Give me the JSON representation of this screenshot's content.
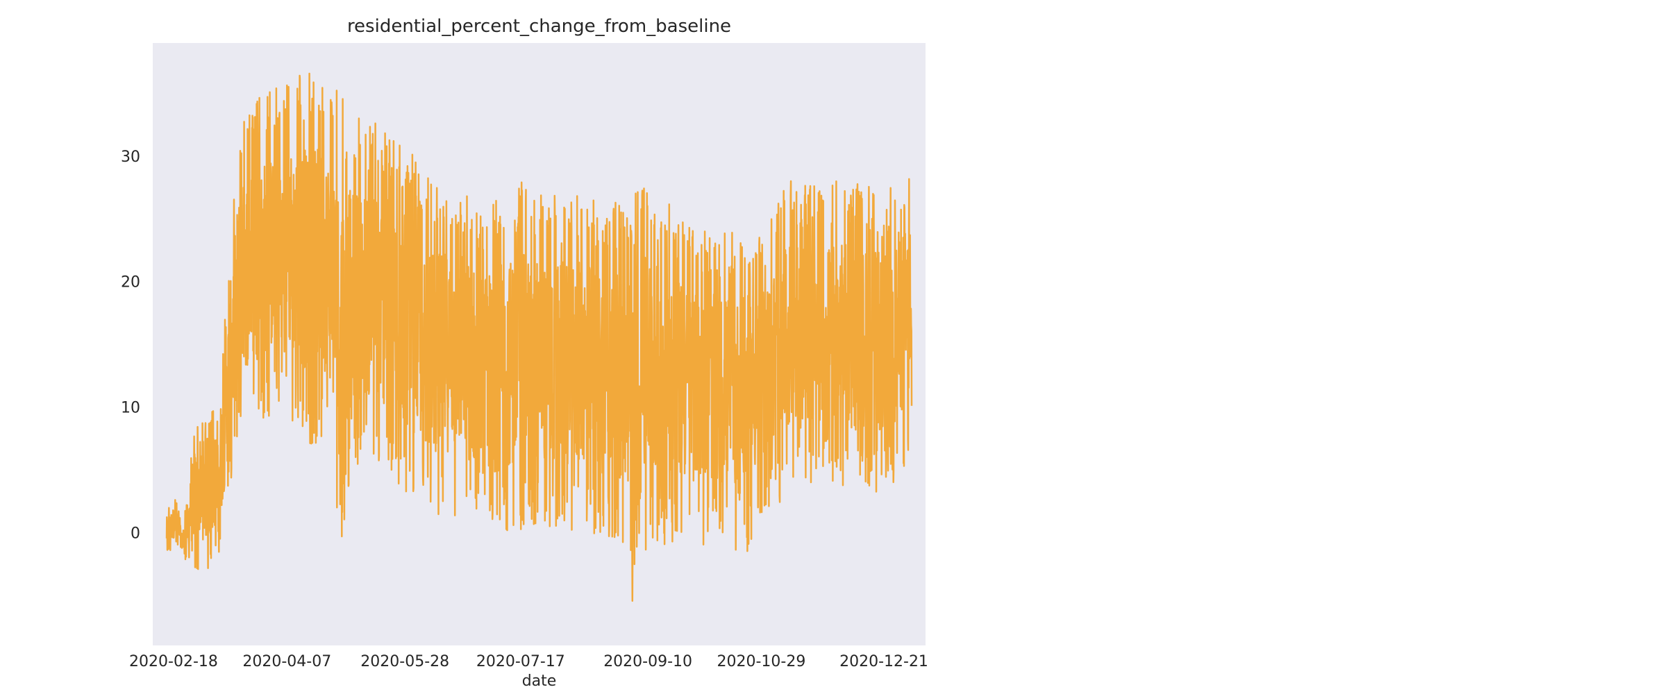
{
  "chart_data": {
    "type": "line",
    "title": "residential_percent_change_from_baseline",
    "xlabel": "date",
    "ylabel": "",
    "x_start": "2020-02-15",
    "x_end": "2021-01-02",
    "xlim": [
      "2020-02-09",
      "2021-01-08"
    ],
    "ylim": [
      -9,
      39
    ],
    "grid": false,
    "legend": "none",
    "line_color": "#F2A93B",
    "plot_background": "#EAEAF2",
    "x_ticks": [
      "2020-02-18",
      "2020-04-07",
      "2020-05-28",
      "2020-07-17",
      "2020-09-10",
      "2020-10-29",
      "2020-12-21"
    ],
    "y_ticks": [
      0,
      10,
      20,
      30
    ],
    "series": [
      {
        "envelope": [
          {
            "date": "2020-02-15",
            "min": -2,
            "max": 2
          },
          {
            "date": "2020-02-19",
            "min": -1,
            "max": 3
          },
          {
            "date": "2020-02-22",
            "min": -2,
            "max": 0
          },
          {
            "date": "2020-02-27",
            "min": -3,
            "max": 9
          },
          {
            "date": "2020-03-05",
            "min": -3,
            "max": 9
          },
          {
            "date": "2020-03-10",
            "min": -1,
            "max": 14
          },
          {
            "date": "2020-03-14",
            "min": 4,
            "max": 25
          },
          {
            "date": "2020-03-17",
            "min": 7,
            "max": 32
          },
          {
            "date": "2020-03-21",
            "min": 8,
            "max": 34
          },
          {
            "date": "2020-03-28",
            "min": 9,
            "max": 35
          },
          {
            "date": "2020-04-07",
            "min": 9,
            "max": 36
          },
          {
            "date": "2020-04-15",
            "min": 7,
            "max": 37
          },
          {
            "date": "2020-04-25",
            "min": 7,
            "max": 36
          },
          {
            "date": "2020-04-30",
            "min": -2,
            "max": 35
          },
          {
            "date": "2020-05-05",
            "min": 5,
            "max": 33
          },
          {
            "date": "2020-05-15",
            "min": 5,
            "max": 33
          },
          {
            "date": "2020-05-28",
            "min": 3,
            "max": 31
          },
          {
            "date": "2020-06-08",
            "min": 1,
            "max": 28
          },
          {
            "date": "2020-06-20",
            "min": 1,
            "max": 28
          },
          {
            "date": "2020-07-01",
            "min": -1,
            "max": 26
          },
          {
            "date": "2020-07-17",
            "min": 0,
            "max": 28
          },
          {
            "date": "2020-08-01",
            "min": 0,
            "max": 27
          },
          {
            "date": "2020-08-15",
            "min": 0,
            "max": 27
          },
          {
            "date": "2020-09-01",
            "min": -2,
            "max": 26
          },
          {
            "date": "2020-09-04",
            "min": -7,
            "max": 28
          },
          {
            "date": "2020-09-10",
            "min": -1,
            "max": 28
          },
          {
            "date": "2020-09-20",
            "min": -1,
            "max": 26
          },
          {
            "date": "2020-10-01",
            "min": -1,
            "max": 24
          },
          {
            "date": "2020-10-15",
            "min": -1,
            "max": 24
          },
          {
            "date": "2020-10-20",
            "min": -3,
            "max": 24
          },
          {
            "date": "2020-10-29",
            "min": 1,
            "max": 24
          },
          {
            "date": "2020-11-10",
            "min": 3,
            "max": 28
          },
          {
            "date": "2020-11-25",
            "min": 4,
            "max": 28
          },
          {
            "date": "2020-12-10",
            "min": 3,
            "max": 28
          },
          {
            "date": "2020-12-21",
            "min": 3,
            "max": 27
          },
          {
            "date": "2020-12-27",
            "min": 4,
            "max": 29
          },
          {
            "date": "2021-01-01",
            "min": 6,
            "max": 29
          },
          {
            "date": "2021-01-02",
            "min": 9,
            "max": 19
          }
        ]
      }
    ]
  }
}
